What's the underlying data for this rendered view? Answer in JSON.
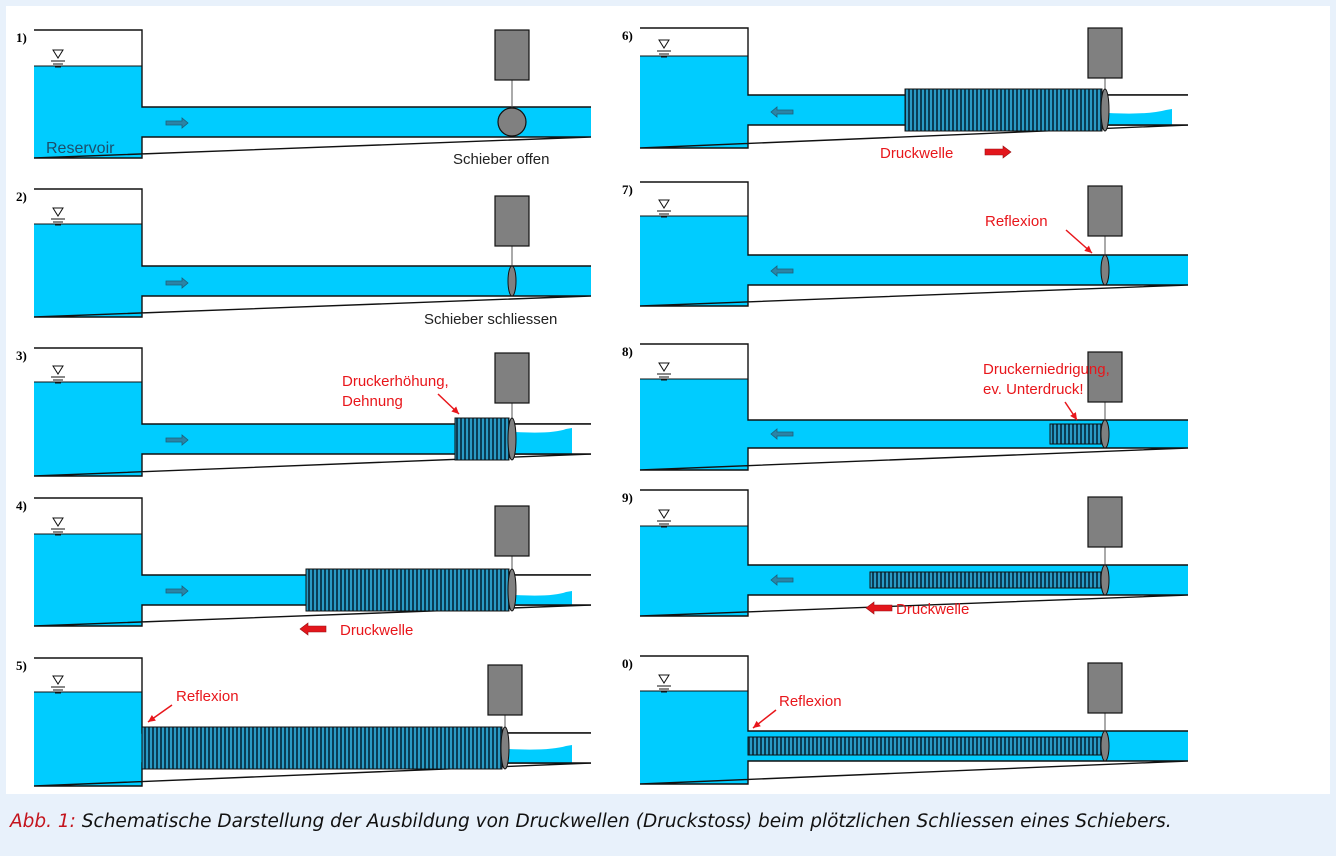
{
  "caption": {
    "label": "Abb. 1:",
    "text": "Schematische Darstellung der Ausbildung von Druckwellen (Druckstoss) beim plötzlichen Schliessen eines Schiebers."
  },
  "colors": {
    "water": "#00ccff",
    "wave": "#1a6f93",
    "flow_arrow": "#2b84a6",
    "red": "#e8161b",
    "gate": "#808080",
    "actuator": "#808080"
  },
  "water_level_symbol": "∇",
  "panels": [
    {
      "number": "1)",
      "labels": [
        "Reservoir",
        "Schieber offen"
      ]
    },
    {
      "number": "2)",
      "labels": [
        "Schieber schliessen"
      ]
    },
    {
      "number": "3)",
      "labels": [
        "Druckerhöhung,",
        "Dehnung"
      ]
    },
    {
      "number": "4)",
      "labels": [
        "Druckwelle"
      ]
    },
    {
      "number": "5)",
      "labels": [
        "Reflexion"
      ]
    },
    {
      "number": "6)",
      "labels": [
        "Druckwelle"
      ]
    },
    {
      "number": "7)",
      "labels": [
        "Reflexion"
      ]
    },
    {
      "number": "8)",
      "labels": [
        "Druckerniedrigung,",
        "ev. Unterdruck!"
      ]
    },
    {
      "number": "9)",
      "labels": [
        "Druckwelle"
      ]
    },
    {
      "number": "0)",
      "labels": [
        "Reflexion"
      ]
    }
  ]
}
